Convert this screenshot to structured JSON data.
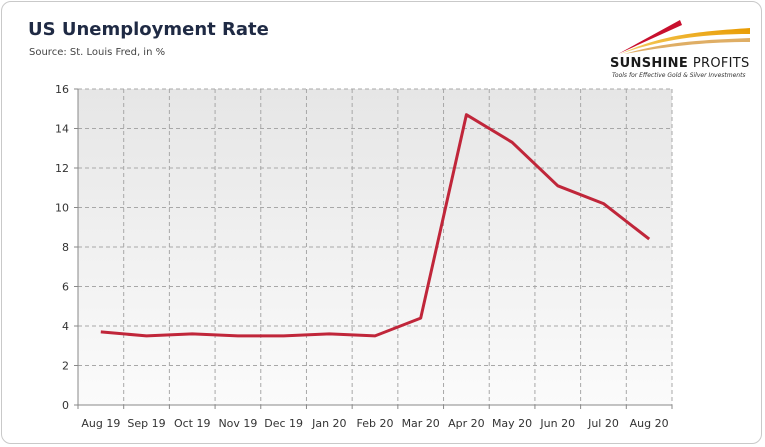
{
  "header": {
    "title": "US Unemployment Rate",
    "source": "Source: St. Louis Fred, in %"
  },
  "logo": {
    "name_bold": "SUNSHINE",
    "name_rest": "PROFITS",
    "tagline": "Tools for Effective Gold & Silver Investments",
    "accent_colors": [
      "#c8102e",
      "#f2a900"
    ]
  },
  "chart_data": {
    "type": "line",
    "title": "US Unemployment Rate",
    "subtitle": "Source: St. Louis Fred, in %",
    "categories": [
      "Aug 19",
      "Sep 19",
      "Oct 19",
      "Nov 19",
      "Dec 19",
      "Jan 20",
      "Feb 20",
      "Mar 20",
      "Apr 20",
      "May 20",
      "Jun 20",
      "Jul 20",
      "Aug 20"
    ],
    "values": [
      3.7,
      3.5,
      3.6,
      3.5,
      3.5,
      3.6,
      3.5,
      4.4,
      14.7,
      13.3,
      11.1,
      10.2,
      8.4
    ],
    "ylim": [
      0,
      16
    ],
    "yticks": [
      0,
      2,
      4,
      6,
      8,
      10,
      12,
      14,
      16
    ],
    "grid": true,
    "legend": "none",
    "line_color": "#c0263a"
  }
}
